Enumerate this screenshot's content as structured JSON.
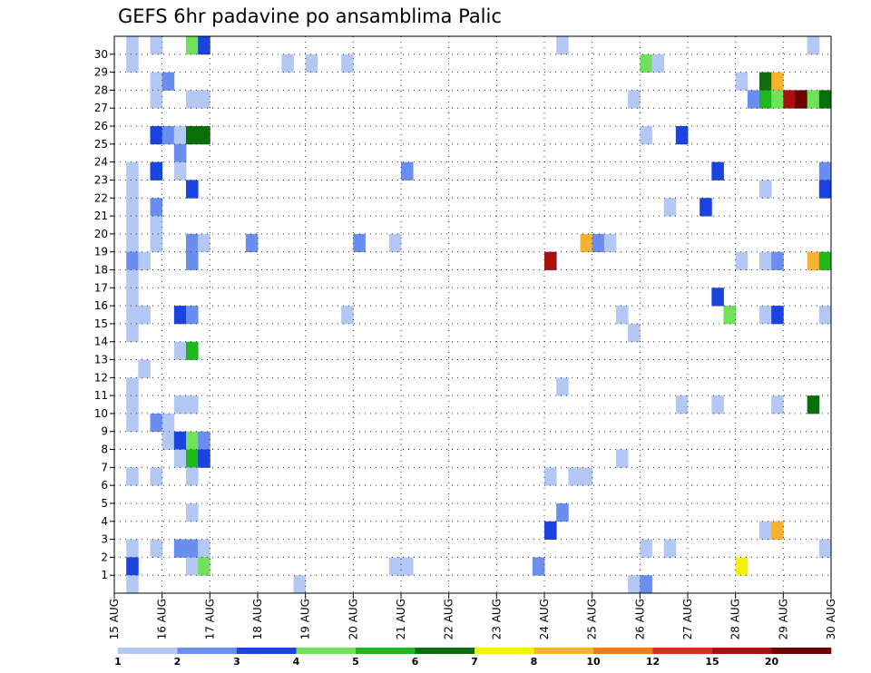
{
  "chart_data": {
    "type": "heatmap",
    "title": "GEFS 6hr padavine po ansamblima Palic",
    "xlabel": "",
    "ylabel": "",
    "x_ticks": [
      "15 AUG",
      "16 AUG",
      "17 AUG",
      "18 AUG",
      "19 AUG",
      "20 AUG",
      "21 AUG",
      "22 AUG",
      "23 AUG",
      "24 AUG",
      "25 AUG",
      "26 AUG",
      "27 AUG",
      "28 AUG",
      "29 AUG",
      "30 AUG"
    ],
    "y_ticks": [
      "1",
      "2",
      "3",
      "4",
      "5",
      "6",
      "7",
      "8",
      "9",
      "10",
      "11",
      "12",
      "13",
      "14",
      "15",
      "16",
      "17",
      "18",
      "19",
      "20",
      "21",
      "22",
      "23",
      "24",
      "25",
      "26",
      "27",
      "28",
      "29",
      "30"
    ],
    "step_unit": "6hr",
    "step_count": 60,
    "grid": true,
    "colorbar": {
      "placement": "bottom",
      "levels": [
        "1",
        "2",
        "3",
        "4",
        "5",
        "6",
        "7",
        "8",
        "10",
        "12",
        "15",
        "20"
      ],
      "colors": [
        "#b4c8f5",
        "#6a8ef0",
        "#1a44e0",
        "#6fe25a",
        "#1cb81c",
        "#0a6e0a",
        "#f4f20c",
        "#f9b230",
        "#f57a1a",
        "#d8301a",
        "#aa0f0f",
        "#6a0000"
      ]
    },
    "cells": [
      [
        30,
        2,
        1
      ],
      [
        30,
        4,
        1
      ],
      [
        30,
        7,
        4
      ],
      [
        30,
        8,
        3
      ],
      [
        30,
        38,
        1
      ],
      [
        30,
        59,
        1
      ],
      [
        29,
        2,
        1
      ],
      [
        29,
        15,
        1
      ],
      [
        29,
        17,
        1
      ],
      [
        29,
        20,
        1
      ],
      [
        29,
        45,
        4
      ],
      [
        29,
        46,
        1
      ],
      [
        28,
        4,
        1
      ],
      [
        28,
        5,
        2
      ],
      [
        28,
        53,
        1
      ],
      [
        28,
        55,
        6
      ],
      [
        28,
        56,
        8
      ],
      [
        27,
        4,
        1
      ],
      [
        27,
        7,
        1
      ],
      [
        27,
        8,
        1
      ],
      [
        27,
        44,
        1
      ],
      [
        27,
        54,
        2
      ],
      [
        27,
        55,
        5
      ],
      [
        27,
        56,
        4
      ],
      [
        27,
        57,
        15
      ],
      [
        27,
        58,
        20
      ],
      [
        27,
        59,
        4
      ],
      [
        27,
        60,
        6
      ],
      [
        25,
        4,
        3
      ],
      [
        25,
        5,
        2
      ],
      [
        25,
        6,
        1
      ],
      [
        25,
        7,
        6
      ],
      [
        25,
        8,
        6
      ],
      [
        25,
        45,
        1
      ],
      [
        25,
        48,
        3
      ],
      [
        24,
        6,
        2
      ],
      [
        23,
        2,
        1
      ],
      [
        23,
        4,
        3
      ],
      [
        23,
        6,
        1
      ],
      [
        23,
        25,
        2
      ],
      [
        23,
        51,
        3
      ],
      [
        23,
        60,
        2
      ],
      [
        22,
        2,
        1
      ],
      [
        22,
        7,
        3
      ],
      [
        22,
        55,
        1
      ],
      [
        22,
        60,
        3
      ],
      [
        21,
        2,
        1
      ],
      [
        21,
        4,
        2
      ],
      [
        21,
        47,
        1
      ],
      [
        21,
        50,
        3
      ],
      [
        20,
        2,
        1
      ],
      [
        20,
        4,
        1
      ],
      [
        19,
        2,
        1
      ],
      [
        19,
        4,
        1
      ],
      [
        19,
        7,
        2
      ],
      [
        19,
        8,
        1
      ],
      [
        19,
        12,
        2
      ],
      [
        19,
        21,
        2
      ],
      [
        19,
        24,
        1
      ],
      [
        19,
        40,
        8
      ],
      [
        19,
        41,
        2
      ],
      [
        19,
        42,
        1
      ],
      [
        18,
        2,
        2
      ],
      [
        18,
        3,
        1
      ],
      [
        18,
        7,
        2
      ],
      [
        18,
        37,
        15
      ],
      [
        18,
        53,
        1
      ],
      [
        18,
        55,
        1
      ],
      [
        18,
        56,
        2
      ],
      [
        18,
        59,
        8
      ],
      [
        18,
        60,
        5
      ],
      [
        17,
        2,
        1
      ],
      [
        16,
        2,
        1
      ],
      [
        16,
        51,
        3
      ],
      [
        15,
        2,
        1
      ],
      [
        15,
        3,
        1
      ],
      [
        15,
        6,
        3
      ],
      [
        15,
        7,
        2
      ],
      [
        15,
        20,
        1
      ],
      [
        15,
        43,
        1
      ],
      [
        15,
        52,
        4
      ],
      [
        15,
        55,
        1
      ],
      [
        15,
        56,
        3
      ],
      [
        15,
        60,
        1
      ],
      [
        14,
        2,
        1
      ],
      [
        14,
        44,
        1
      ],
      [
        13,
        6,
        1
      ],
      [
        13,
        7,
        5
      ],
      [
        12,
        3,
        1
      ],
      [
        11,
        2,
        1
      ],
      [
        11,
        38,
        1
      ],
      [
        10,
        2,
        1
      ],
      [
        10,
        6,
        1
      ],
      [
        10,
        7,
        1
      ],
      [
        10,
        48,
        1
      ],
      [
        10,
        51,
        1
      ],
      [
        10,
        56,
        1
      ],
      [
        10,
        59,
        6
      ],
      [
        9,
        2,
        1
      ],
      [
        9,
        4,
        2
      ],
      [
        9,
        5,
        1
      ],
      [
        8,
        5,
        1
      ],
      [
        8,
        6,
        3
      ],
      [
        8,
        7,
        4
      ],
      [
        8,
        8,
        2
      ],
      [
        7,
        6,
        1
      ],
      [
        7,
        7,
        5
      ],
      [
        7,
        8,
        3
      ],
      [
        7,
        43,
        1
      ],
      [
        6,
        2,
        1
      ],
      [
        6,
        4,
        1
      ],
      [
        6,
        7,
        1
      ],
      [
        6,
        37,
        1
      ],
      [
        6,
        39,
        1
      ],
      [
        6,
        40,
        1
      ],
      [
        4,
        7,
        1
      ],
      [
        4,
        38,
        2
      ],
      [
        3,
        37,
        3
      ],
      [
        3,
        55,
        1
      ],
      [
        3,
        56,
        8
      ],
      [
        2,
        2,
        1
      ],
      [
        2,
        4,
        1
      ],
      [
        2,
        6,
        2
      ],
      [
        2,
        7,
        2
      ],
      [
        2,
        8,
        1
      ],
      [
        2,
        45,
        1
      ],
      [
        2,
        47,
        1
      ],
      [
        2,
        60,
        1
      ],
      [
        1,
        2,
        3
      ],
      [
        1,
        7,
        1
      ],
      [
        1,
        8,
        4
      ],
      [
        1,
        24,
        1
      ],
      [
        1,
        25,
        1
      ],
      [
        1,
        36,
        2
      ],
      [
        1,
        53,
        7
      ],
      [
        0,
        2,
        1
      ],
      [
        0,
        16,
        1
      ],
      [
        0,
        44,
        1
      ],
      [
        0,
        45,
        2
      ]
    ]
  }
}
